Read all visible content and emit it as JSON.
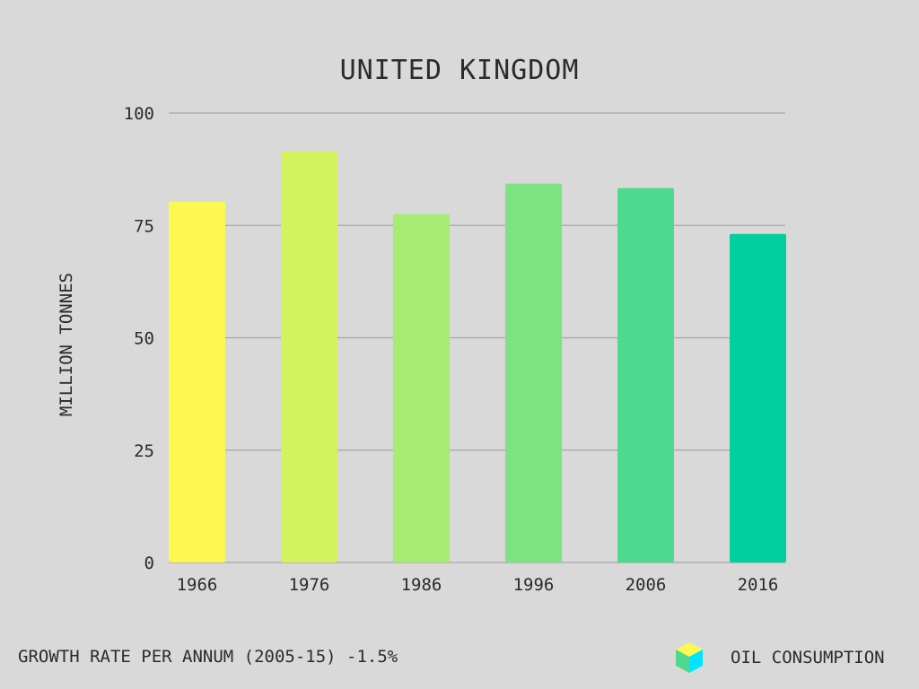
{
  "chart_data": {
    "type": "bar",
    "title": "UNITED KINGDOM",
    "xlabel": "",
    "ylabel": "MILLION TONNES",
    "categories": [
      "1966",
      "1976",
      "1986",
      "1996",
      "2006",
      "2016"
    ],
    "series": [
      {
        "name": "OIL CONSUMPTION",
        "values": [
          80.3,
          91.5,
          77.5,
          84.3,
          83.3,
          73.1
        ]
      }
    ],
    "bar_colors": [
      "#fdf751",
      "#d3f25c",
      "#a7ec72",
      "#7ce282",
      "#4fd98f",
      "#00cfa0"
    ],
    "ylim": [
      0,
      100
    ],
    "yticks": [
      "0",
      "25",
      "50",
      "75",
      "100"
    ],
    "grid": true,
    "legend_position": "bottom-right"
  },
  "footer": {
    "growth_note": "GROWTH RATE PER ANNUM (2005-15) -1.5%"
  },
  "legend": {
    "label": "OIL CONSUMPTION",
    "icon": "cube-icon",
    "icon_colors": [
      "#fdf751",
      "#4fd98f",
      "#00e5ff"
    ]
  },
  "colors": {
    "background": "#d9d9d9",
    "text": "#2b2b2b",
    "grid": "#a6a6a6"
  }
}
